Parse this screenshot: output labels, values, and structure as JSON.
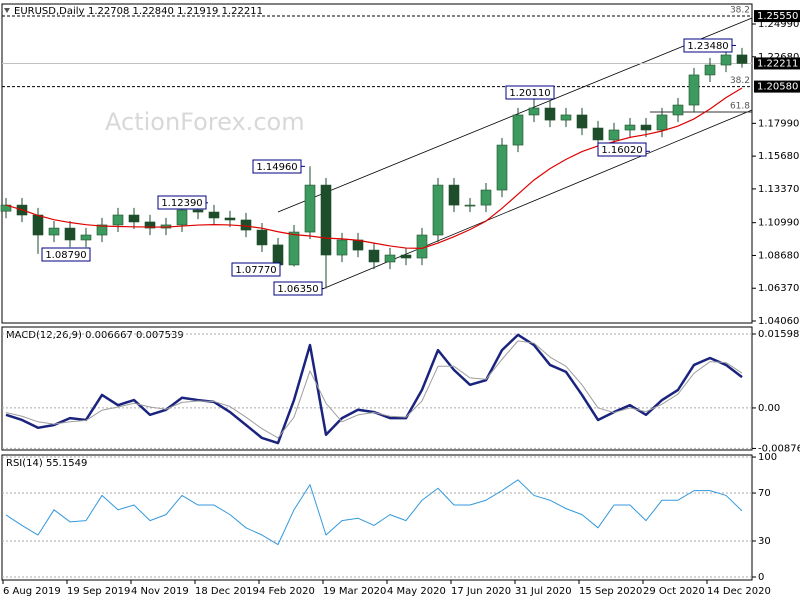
{
  "chart_data": [
    {
      "type": "candlestick",
      "title": "EURUSD,Daily",
      "subtitle": "1.22708 1.22840 1.21919 1.22211",
      "watermark": "ActionForex.com",
      "categories": [
        "6 Aug 2019",
        null,
        null,
        null,
        "19 Sep 2019",
        null,
        null,
        null,
        "4 Nov 2019",
        null,
        null,
        null,
        "18 Dec 2019",
        null,
        null,
        null,
        "4 Feb 2020",
        null,
        null,
        null,
        "19 Mar 2020",
        null,
        null,
        null,
        "4 May 2020",
        null,
        null,
        null,
        "17 Jun 2020",
        null,
        null,
        null,
        "31 Jul 2020",
        null,
        null,
        null,
        "15 Sep 2020",
        null,
        null,
        null,
        "29 Oct 2020",
        null,
        null,
        null,
        "14 Dec 2020",
        null,
        null
      ],
      "open": [
        1.118,
        1.1223,
        1.1153,
        1.1012,
        1.1061,
        1.0977,
        1.1012,
        1.1083,
        1.1153,
        1.1104,
        1.1061,
        1.1083,
        1.1188,
        1.1174,
        1.1132,
        1.1118,
        1.1047,
        1.0942,
        1.0801,
        1.1033,
        1.1364,
        1.0871,
        1.0977,
        1.0906,
        1.0822,
        1.0871,
        1.085,
        1.1012,
        1.1364,
        1.1223,
        1.1223,
        1.1329,
        1.1646,
        1.1858,
        1.1907,
        1.1822,
        1.1858,
        1.1766,
        1.1682,
        1.1752,
        1.1787,
        1.1752,
        1.1858,
        1.1928,
        1.214,
        1.221,
        1.2281
      ],
      "high": [
        1.1273,
        1.1273,
        1.1203,
        1.1111,
        1.1111,
        1.1062,
        1.1133,
        1.1203,
        1.1203,
        1.1154,
        1.1133,
        1.1239,
        1.1238,
        1.1224,
        1.1182,
        1.1168,
        1.1097,
        1.0992,
        1.1083,
        1.1496,
        1.1414,
        1.1027,
        1.1027,
        1.0956,
        1.0921,
        1.0921,
        1.1062,
        1.1414,
        1.1414,
        1.1273,
        1.1379,
        1.1696,
        1.1908,
        1.2011,
        1.1957,
        1.1908,
        1.1908,
        1.1816,
        1.1802,
        1.1837,
        1.1837,
        1.1908,
        1.1978,
        1.219,
        1.226,
        1.2348,
        1.2331
      ],
      "low": [
        1.113,
        1.1103,
        1.0879,
        1.0962,
        1.0927,
        1.0927,
        1.0962,
        1.1033,
        1.1054,
        1.1011,
        1.1011,
        1.1033,
        1.1124,
        1.1082,
        1.1068,
        1.0997,
        1.0892,
        1.0777,
        1.079,
        1.0983,
        1.0635,
        1.0821,
        1.0856,
        1.0772,
        1.0772,
        1.08,
        1.08,
        1.0962,
        1.1173,
        1.1173,
        1.1173,
        1.1279,
        1.1596,
        1.1808,
        1.1772,
        1.1772,
        1.1716,
        1.1602,
        1.1632,
        1.1702,
        1.1702,
        1.1702,
        1.1808,
        1.1878,
        1.209,
        1.216,
        1.21919
      ],
      "close": [
        1.1223,
        1.1153,
        1.1012,
        1.1061,
        1.0977,
        1.1012,
        1.1083,
        1.1153,
        1.1104,
        1.1061,
        1.1083,
        1.1188,
        1.1174,
        1.1132,
        1.1118,
        1.1047,
        1.0942,
        1.0801,
        1.1033,
        1.1364,
        1.0871,
        1.0977,
        1.0906,
        1.0822,
        1.0871,
        1.085,
        1.1012,
        1.1364,
        1.1223,
        1.1223,
        1.1329,
        1.1646,
        1.1858,
        1.1907,
        1.1822,
        1.1858,
        1.1766,
        1.1682,
        1.1752,
        1.1787,
        1.1752,
        1.1858,
        1.1928,
        1.214,
        1.221,
        1.2281,
        1.22211
      ],
      "up_color": "#3c9a5f",
      "down_color": "#1e4d2b",
      "wick_color": "#1e4d2b",
      "ma": {
        "color": "#e00000",
        "values": [
          1.1223,
          1.119,
          1.115,
          1.112,
          1.11,
          1.1085,
          1.1075,
          1.1072,
          1.107,
          1.1068,
          1.1068,
          1.1075,
          1.1082,
          1.1085,
          1.1083,
          1.1075,
          1.106,
          1.1035,
          1.1015,
          1.1005,
          1.099,
          1.0985,
          1.0975,
          1.0955,
          1.0935,
          1.092,
          1.0918,
          1.0955,
          1.1,
          1.105,
          1.111,
          1.12,
          1.13,
          1.14,
          1.148,
          1.1545,
          1.16,
          1.164,
          1.167,
          1.17,
          1.172,
          1.1745,
          1.178,
          1.183,
          1.19,
          1.198,
          1.2048
        ]
      },
      "ylim": [
        1.0392,
        1.264
      ],
      "yticks": [
        {
          "value": 1.2499,
          "label": "1.24990"
        },
        {
          "value": 1.2268,
          "label": "1.22680"
        },
        {
          "value": 1.1799,
          "label": "1.17990"
        },
        {
          "value": 1.1568,
          "label": "1.15680"
        },
        {
          "value": 1.1337,
          "label": "1.13370"
        },
        {
          "value": 1.1099,
          "label": "1.10990"
        },
        {
          "value": 1.0868,
          "label": "1.08680"
        },
        {
          "value": 1.0637,
          "label": "1.06370"
        },
        {
          "value": 1.0406,
          "label": "1.04060"
        }
      ],
      "hlines": [
        {
          "value": 1.2555,
          "label": "1.25550"
        },
        {
          "value": 1.2058,
          "label": "1.20580"
        }
      ],
      "price_line_color": "#c0c0c0",
      "fib_labels": [
        {
          "value": 1.2555,
          "label": "38.2"
        },
        {
          "value": 1.2058,
          "label": "38.2"
        },
        {
          "value": 1.1879,
          "label": "61.8"
        }
      ],
      "annotation_color": "#000080",
      "annotations": [
        {
          "value": 1.0879,
          "label": "1.08790"
        },
        {
          "value": 1.1239,
          "label": "1.12390"
        },
        {
          "value": 1.1496,
          "label": "1.14960"
        },
        {
          "value": 1.0777,
          "label": "1.07770"
        },
        {
          "value": 1.0635,
          "label": "1.06350"
        },
        {
          "value": 1.2011,
          "label": "1.20110"
        },
        {
          "value": 1.1602,
          "label": "1.16020"
        },
        {
          "value": 1.2348,
          "label": "1.23480"
        }
      ]
    },
    {
      "type": "line",
      "title": "MACD(12,26,9) 0.006667 0.007539",
      "grid": true,
      "series": [
        {
          "color": "#1a237e",
          "width": 2.5,
          "values": [
            -0.0015,
            -0.0026,
            -0.0043,
            -0.0037,
            -0.0022,
            -0.0026,
            0.0028,
            0.0006,
            0.0017,
            -0.0015,
            -0.0004,
            0.0022,
            0.0017,
            0.0013,
            -0.0009,
            -0.0037,
            -0.0065,
            -0.0076,
            0.0017,
            0.0136,
            -0.0058,
            -0.0022,
            -0.0004,
            -0.0009,
            -0.0022,
            -0.0022,
            0.0039,
            0.0125,
            0.0082,
            0.005,
            0.006,
            0.0125,
            0.0158,
            0.0136,
            0.0093,
            0.0078,
            0.0028,
            -0.0026,
            -0.0009,
            0.0006,
            -0.0015,
            0.0017,
            0.0039,
            0.0093,
            0.0108,
            0.0093,
            0.006667
          ]
        },
        {
          "color": "#9e9e9e",
          "width": 1,
          "values": [
            -0.001,
            -0.0018,
            -0.003,
            -0.0035,
            -0.003,
            -0.0027,
            -0.0005,
            0.0002,
            0.001,
            0.0002,
            -0.0003,
            0.0012,
            0.0015,
            0.0014,
            0.0003,
            -0.002,
            -0.0045,
            -0.0065,
            -0.002,
            0.008,
            0.001,
            -0.003,
            -0.0015,
            -0.001,
            -0.0018,
            -0.002,
            0.0015,
            0.009,
            0.009,
            0.0065,
            0.0062,
            0.0105,
            0.0145,
            0.014,
            0.011,
            0.009,
            0.005,
            0.0,
            -0.001,
            0.0,
            -0.0008,
            0.0008,
            0.003,
            0.0075,
            0.01,
            0.0098,
            0.007539
          ]
        }
      ],
      "ylim": [
        -0.0091,
        0.0175
      ],
      "yticks": [
        0.015983,
        {
          "value": 0,
          "label": "0.00"
        },
        -0.008762
      ]
    },
    {
      "type": "line",
      "title": "RSI(14) 55.1549",
      "grid": true,
      "series": [
        {
          "color": "#3399dd",
          "width": 1,
          "values": [
            51.7,
            43,
            35,
            56,
            46,
            47,
            68,
            56,
            60,
            47,
            52,
            68,
            60,
            60,
            52,
            41,
            35,
            27,
            56,
            77,
            35,
            47,
            49,
            43,
            52,
            47,
            64,
            74,
            60,
            60,
            64,
            72,
            81,
            68,
            64,
            57,
            52,
            41,
            60,
            60,
            47,
            64,
            64,
            72,
            72,
            68,
            55.1549
          ]
        }
      ],
      "ylim": [
        -2.5,
        101.7
      ],
      "yticks": [
        100,
        70,
        30,
        0
      ]
    }
  ]
}
